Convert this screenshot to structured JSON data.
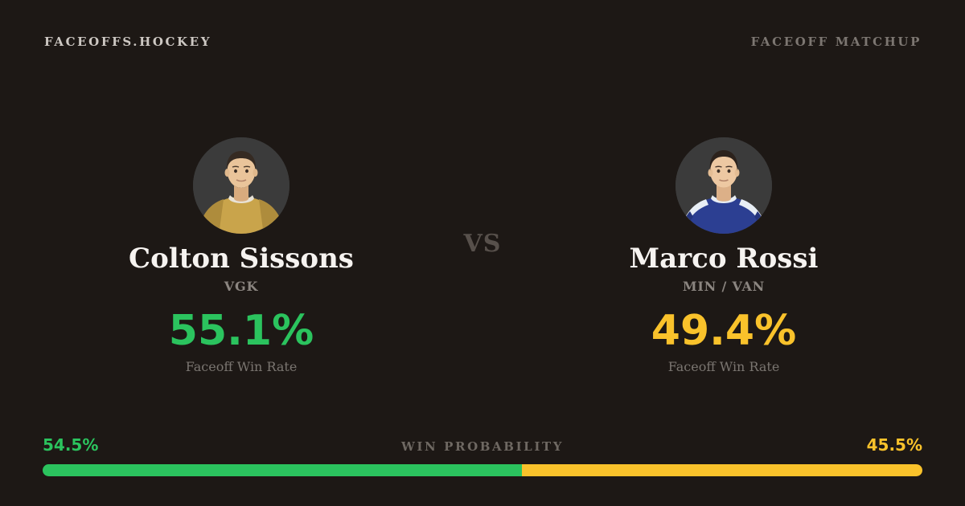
{
  "page": {
    "background_color": "#1d1815",
    "site_name": "FACEOFFS.HOCKEY",
    "page_label": "FACEOFF MATCHUP"
  },
  "matchup": {
    "vs_label": "VS",
    "players": [
      {
        "name": "Colton Sissons",
        "team": "VGK",
        "win_rate": "55.1%",
        "win_rate_label": "Faceoff Win Rate",
        "accent_color": "#2bc35e",
        "avatar": "player-headshot-gold-jersey",
        "jersey_color": "#c9a44b",
        "jersey_shade": "#ae8c3c"
      },
      {
        "name": "Marco Rossi",
        "team": "MIN / VAN",
        "win_rate": "49.4%",
        "win_rate_label": "Faceoff Win Rate",
        "accent_color": "#f9c22b",
        "avatar": "player-headshot-blue-jersey",
        "jersey_color": "#2c3f92",
        "jersey_shade": "#24347c"
      }
    ]
  },
  "win_probability": {
    "label": "WIN PROBABILITY",
    "left_value": "54.5%",
    "right_value": "45.5%",
    "left_pct": 54.5,
    "right_pct": 45.5,
    "left_color": "#2bc35e",
    "right_color": "#f9c22b"
  }
}
